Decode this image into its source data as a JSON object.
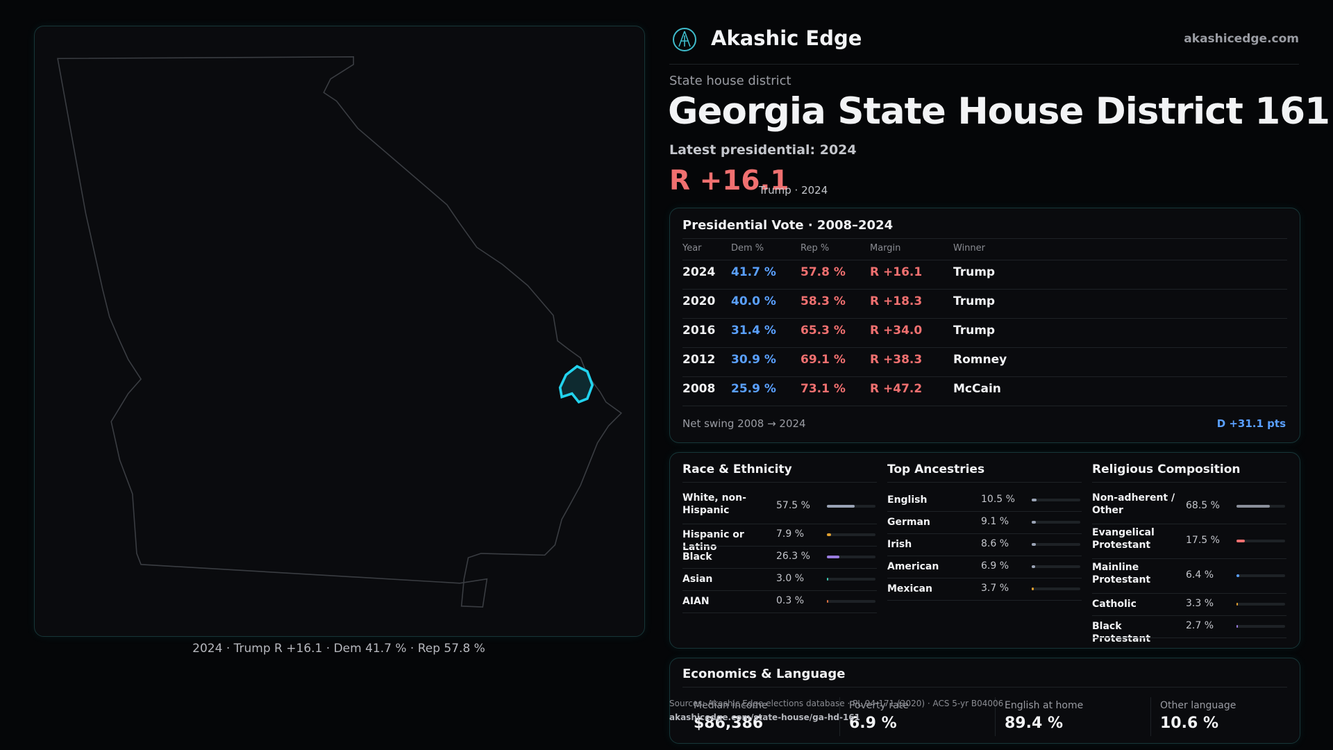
{
  "header": {
    "brand": "Akashic Edge",
    "url": "akashicedge.com"
  },
  "district": {
    "kicker": "State house district",
    "title": "Georgia State House District 161",
    "latest": "Latest presidential: 2024",
    "margin": "R +16.1",
    "margin_note": "Trump · 2024"
  },
  "map": {
    "caption": "2024 · Trump R +16.1 · Dem 41.7 % · Rep 57.8 %"
  },
  "presidential": {
    "title": "Presidential Vote · 2008–2024",
    "columns": [
      "Year",
      "Dem %",
      "Rep %",
      "Margin",
      "Winner"
    ],
    "rows": [
      [
        "2024",
        "41.7 %",
        "57.8 %",
        "R +16.1",
        "Trump"
      ],
      [
        "2020",
        "40.0 %",
        "58.3 %",
        "R +18.3",
        "Trump"
      ],
      [
        "2016",
        "31.4 %",
        "65.3 %",
        "R +34.0",
        "Trump"
      ],
      [
        "2012",
        "30.9 %",
        "69.1 %",
        "R +38.3",
        "Romney"
      ],
      [
        "2008",
        "25.9 %",
        "73.1 %",
        "R +47.2",
        "McCain"
      ]
    ],
    "swing_label": "Net swing 2008 → 2024",
    "swing_value": "D +31.1 pts"
  },
  "composition": [
    {
      "title": "Race & Ethnicity",
      "items": [
        {
          "name": "White, non-Hispanic",
          "value": 57.5,
          "text": "57.5 %",
          "color": "#9aa3b5"
        },
        {
          "name": "Hispanic or Latino",
          "value": 7.9,
          "text": "7.9 %",
          "color": "#e0a030"
        },
        {
          "name": "Black",
          "value": 26.3,
          "text": "26.3 %",
          "color": "#9a7ce0"
        },
        {
          "name": "Asian",
          "value": 3.0,
          "text": "3.0 %",
          "color": "#3cc8b0"
        },
        {
          "name": "AIAN",
          "value": 0.3,
          "text": "0.3 %",
          "color": "#e07040"
        }
      ]
    },
    {
      "title": "Top Ancestries",
      "items": [
        {
          "name": "English",
          "value": 10.5,
          "text": "10.5 %",
          "color": "#9aa3b5"
        },
        {
          "name": "German",
          "value": 9.1,
          "text": "9.1 %",
          "color": "#9aa3b5"
        },
        {
          "name": "Irish",
          "value": 8.6,
          "text": "8.6 %",
          "color": "#9aa3b5"
        },
        {
          "name": "American",
          "value": 6.9,
          "text": "6.9 %",
          "color": "#9aa3b5"
        },
        {
          "name": "Mexican",
          "value": 3.7,
          "text": "3.7 %",
          "color": "#e0a030"
        }
      ]
    },
    {
      "title": "Religious Composition",
      "items": [
        {
          "name": "Non-adherent / Other",
          "value": 68.5,
          "text": "68.5 %",
          "color": "#8a8f9a"
        },
        {
          "name": "Evangelical Protestant",
          "value": 17.5,
          "text": "17.5 %",
          "color": "#f07070"
        },
        {
          "name": "Mainline Protestant",
          "value": 6.4,
          "text": "6.4 %",
          "color": "#5aa0ff"
        },
        {
          "name": "Catholic",
          "value": 3.3,
          "text": "3.3 %",
          "color": "#e0a030"
        },
        {
          "name": "Black Protestant",
          "value": 2.7,
          "text": "2.7 %",
          "color": "#9a7ce0"
        }
      ]
    }
  ],
  "economics": {
    "title": "Economics & Language",
    "items": [
      {
        "label": "Median income",
        "value": "$86,386"
      },
      {
        "label": "Poverty rate",
        "value": "6.9 %"
      },
      {
        "label": "English at home",
        "value": "89.4 %"
      },
      {
        "label": "Other language",
        "value": "10.6 %"
      }
    ]
  },
  "footer": {
    "sources": "Sources: Akashic Edge elections database · PL 94-171 (2020) · ACS 5-yr B04006",
    "link": "akashicedge.com/state-house/ga-hd-161"
  }
}
